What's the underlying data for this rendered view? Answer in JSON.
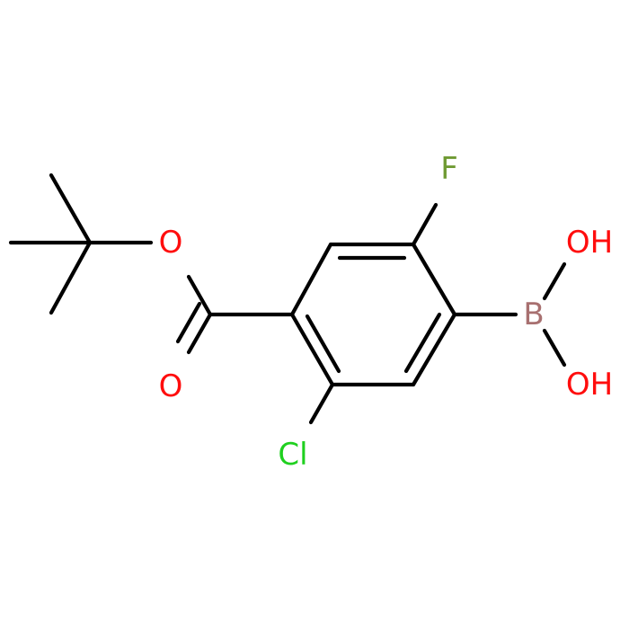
{
  "atoms": [
    "F",
    "B",
    "OH",
    "OH",
    "Cl",
    "O",
    "O"
  ]
}
